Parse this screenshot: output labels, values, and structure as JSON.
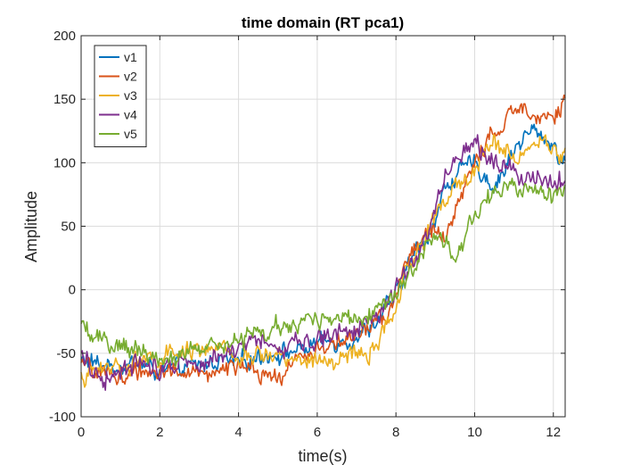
{
  "chart_data": {
    "type": "line",
    "title": "time domain (RT pca1)",
    "xlabel": "time(s)",
    "ylabel": "Amplitude",
    "xlim": [
      0,
      12.3
    ],
    "ylim": [
      -100,
      200
    ],
    "xticks": [
      0,
      2,
      4,
      6,
      8,
      10,
      12
    ],
    "yticks": [
      -100,
      -50,
      0,
      50,
      100,
      150,
      200
    ],
    "grid": true,
    "legend_position": "top-left",
    "series": [
      {
        "name": "v1",
        "color": "#0072BD",
        "noise": 9,
        "x": [
          0,
          0.5,
          1,
          1.5,
          2,
          2.5,
          3,
          3.5,
          4,
          4.5,
          5,
          5.5,
          6,
          6.5,
          7,
          7.25,
          7.5,
          7.75,
          8,
          8.25,
          8.5,
          8.75,
          9,
          9.25,
          9.5,
          9.75,
          10,
          10.25,
          10.5,
          10.75,
          11,
          11.25,
          11.5,
          11.75,
          12,
          12.3
        ],
        "y": [
          -55,
          -60,
          -60,
          -58,
          -65,
          -62,
          -60,
          -55,
          -58,
          -52,
          -50,
          -48,
          -42,
          -40,
          -38,
          -32,
          -25,
          -15,
          -5,
          15,
          30,
          40,
          55,
          80,
          90,
          95,
          100,
          90,
          80,
          95,
          110,
          120,
          125,
          120,
          115,
          95
        ]
      },
      {
        "name": "v2",
        "color": "#D95319",
        "noise": 9,
        "x": [
          0,
          0.5,
          1,
          1.5,
          2,
          2.5,
          3,
          3.5,
          4,
          4.5,
          5,
          5.5,
          6,
          6.5,
          7,
          7.25,
          7.5,
          7.75,
          8,
          8.25,
          8.5,
          8.75,
          9,
          9.25,
          9.5,
          9.75,
          10,
          10.25,
          10.5,
          10.75,
          11,
          11.25,
          11.5,
          11.75,
          12,
          12.3
        ],
        "y": [
          -60,
          -65,
          -68,
          -65,
          -62,
          -65,
          -68,
          -62,
          -60,
          -68,
          -70,
          -55,
          -45,
          -42,
          -38,
          -30,
          -25,
          -20,
          -5,
          20,
          35,
          40,
          50,
          40,
          60,
          80,
          100,
          115,
          120,
          130,
          140,
          145,
          142,
          138,
          135,
          148
        ]
      },
      {
        "name": "v3",
        "color": "#EDB120",
        "noise": 9,
        "x": [
          0,
          0.5,
          1,
          1.5,
          2,
          2.5,
          3,
          3.5,
          4,
          4.5,
          5,
          5.5,
          6,
          6.5,
          7,
          7.25,
          7.5,
          7.75,
          8,
          8.25,
          8.5,
          8.75,
          9,
          9.25,
          9.5,
          9.75,
          10,
          10.25,
          10.5,
          10.75,
          11,
          11.25,
          11.5,
          11.75,
          12,
          12.3
        ],
        "y": [
          -70,
          -62,
          -60,
          -55,
          -55,
          -50,
          -45,
          -48,
          -55,
          -52,
          -50,
          -55,
          -58,
          -55,
          -52,
          -50,
          -45,
          -30,
          -15,
          10,
          30,
          40,
          60,
          70,
          80,
          85,
          95,
          110,
          115,
          110,
          105,
          110,
          115,
          118,
          110,
          105
        ]
      },
      {
        "name": "v4",
        "color": "#7E2F8E",
        "noise": 10,
        "x": [
          0,
          0.5,
          1,
          1.5,
          2,
          2.5,
          3,
          3.5,
          4,
          4.5,
          5,
          5.5,
          6,
          6.5,
          7,
          7.25,
          7.5,
          7.75,
          8,
          8.25,
          8.5,
          8.75,
          9,
          9.25,
          9.5,
          9.75,
          10,
          10.25,
          10.5,
          10.75,
          11,
          11.25,
          11.5,
          11.75,
          12,
          12.3
        ],
        "y": [
          -50,
          -70,
          -62,
          -58,
          -60,
          -55,
          -55,
          -50,
          -48,
          -40,
          -45,
          -42,
          -38,
          -35,
          -30,
          -25,
          -20,
          -10,
          0,
          15,
          25,
          40,
          60,
          90,
          105,
          110,
          115,
          110,
          100,
          100,
          95,
          90,
          88,
          90,
          85,
          82
        ]
      },
      {
        "name": "v5",
        "color": "#77AC30",
        "noise": 9,
        "x": [
          0,
          0.5,
          1,
          1.5,
          2,
          2.5,
          3,
          3.5,
          4,
          4.5,
          5,
          5.5,
          6,
          6.5,
          7,
          7.25,
          7.5,
          7.75,
          8,
          8.25,
          8.5,
          8.75,
          9,
          9.25,
          9.5,
          9.75,
          10,
          10.25,
          10.5,
          10.75,
          11,
          11.25,
          11.5,
          11.75,
          12,
          12.3
        ],
        "y": [
          -30,
          -40,
          -45,
          -50,
          -55,
          -50,
          -48,
          -45,
          -40,
          -35,
          -30,
          -28,
          -25,
          -22,
          -20,
          -18,
          -15,
          -10,
          0,
          10,
          20,
          35,
          40,
          35,
          20,
          40,
          60,
          70,
          75,
          78,
          80,
          78,
          75,
          75,
          72,
          75
        ]
      }
    ]
  }
}
